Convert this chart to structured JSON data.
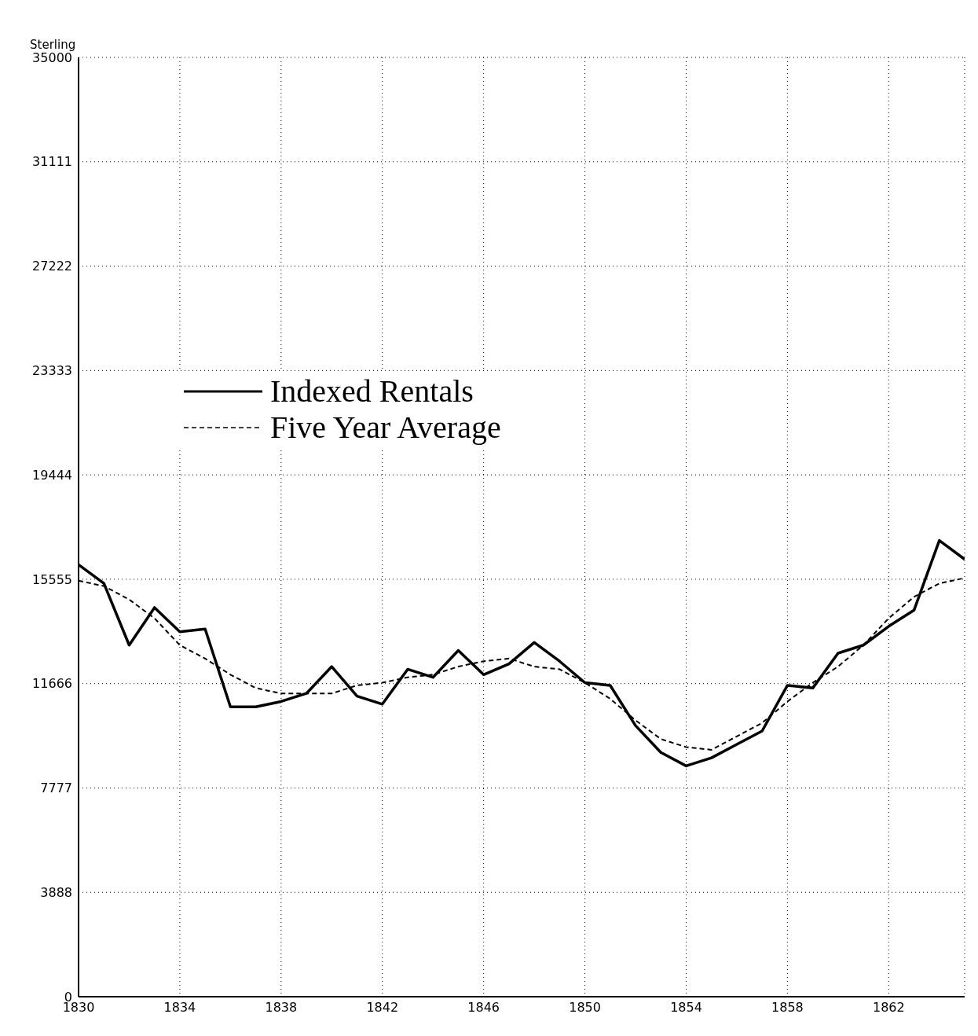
{
  "chart_data": {
    "type": "line",
    "ylabel": "Sterling",
    "x": [
      1830,
      1831,
      1832,
      1833,
      1834,
      1835,
      1836,
      1837,
      1838,
      1839,
      1840,
      1841,
      1842,
      1843,
      1844,
      1845,
      1846,
      1847,
      1848,
      1849,
      1850,
      1851,
      1852,
      1853,
      1854,
      1855,
      1856,
      1857,
      1858,
      1859,
      1860,
      1861,
      1862,
      1863,
      1864,
      1865
    ],
    "series": [
      {
        "name": "Indexed Rentals",
        "color": "#000000",
        "line_style": "solid",
        "values": [
          16100,
          15400,
          13100,
          14500,
          13600,
          13700,
          10800,
          10800,
          11000,
          11300,
          12300,
          11200,
          10900,
          12200,
          11900,
          12900,
          12000,
          12400,
          13200,
          12500,
          11700,
          11600,
          10100,
          9100,
          8600,
          8900,
          9400,
          9900,
          11600,
          11500,
          12800,
          13100,
          13800,
          14400,
          17000,
          16300
        ]
      },
      {
        "name": "Five Year Average",
        "color": "#000000",
        "line_style": "dashed",
        "values": [
          15500,
          15300,
          14800,
          14100,
          13100,
          12600,
          12000,
          11500,
          11300,
          11300,
          11300,
          11600,
          11700,
          11900,
          12000,
          12300,
          12500,
          12600,
          12300,
          12200,
          11700,
          11100,
          10300,
          9600,
          9300,
          9200,
          9700,
          10200,
          11000,
          11700,
          12300,
          13100,
          14100,
          14900,
          15400,
          15600
        ]
      }
    ],
    "xlim": [
      1830,
      1865
    ],
    "xticks": [
      1830,
      1834,
      1838,
      1842,
      1846,
      1850,
      1854,
      1858,
      1862
    ],
    "ylim": [
      0,
      35000
    ],
    "yticks": [
      0,
      3888,
      7777,
      11666,
      15555,
      19444,
      23333,
      27222,
      31111,
      35000
    ],
    "grid": true,
    "legend": "top left",
    "marker": "none"
  }
}
